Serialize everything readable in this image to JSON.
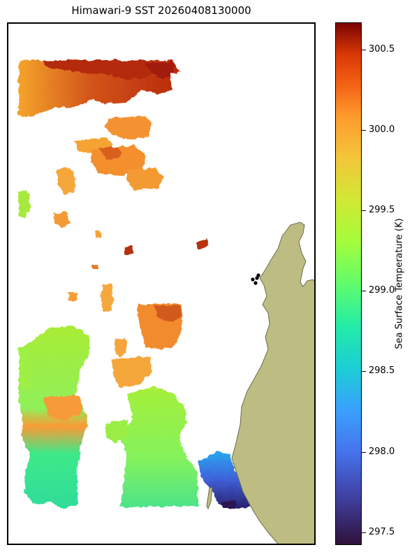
{
  "title": "Himawari-9 SST 20260408130000",
  "colorbar": {
    "label": "Sea Surface Temperature (K)",
    "min": 297.42,
    "max": 300.67,
    "ticks": [
      "297.5",
      "298.0",
      "298.5",
      "299.0",
      "299.5",
      "300.0",
      "300.5"
    ],
    "tick_values": [
      297.5,
      298.0,
      298.5,
      299.0,
      299.5,
      300.0,
      300.5
    ],
    "colormap": "turbo"
  },
  "colors": {
    "land": "#bdbd83",
    "coast_stroke": "#6b6b4a",
    "no_data": "#ffffff",
    "markers": "#000000"
  }
}
